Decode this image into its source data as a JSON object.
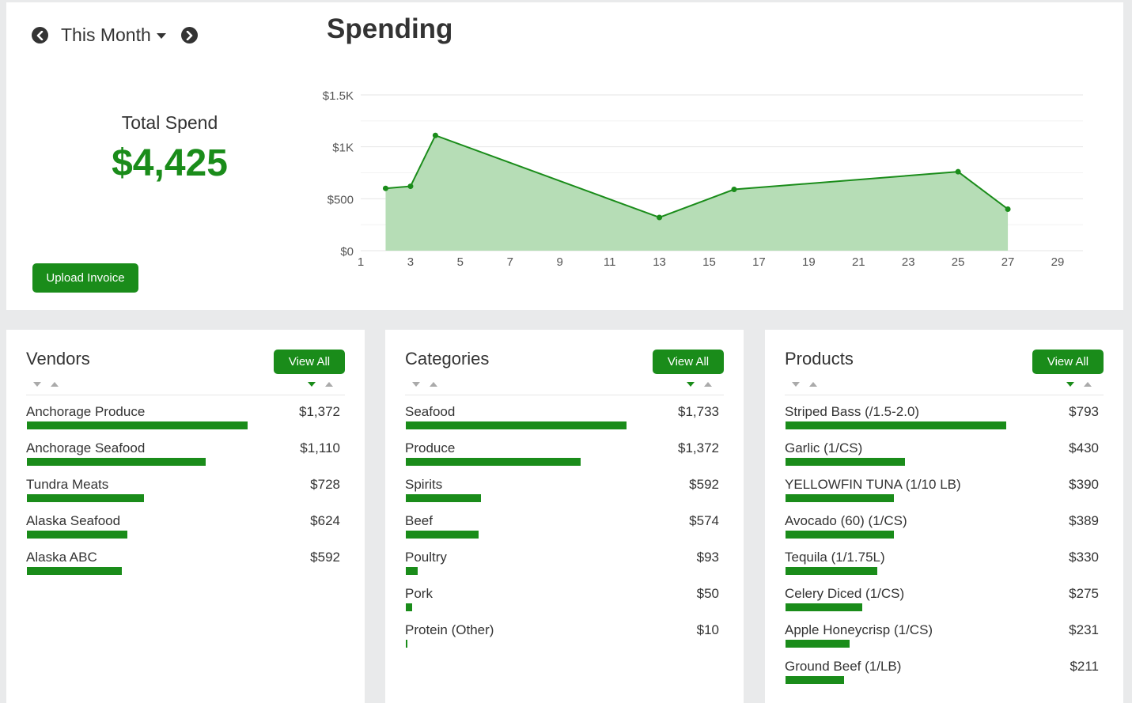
{
  "period": {
    "label": "This Month",
    "prev_icon": "chevron-left-circle-icon",
    "next_icon": "chevron-right-circle-icon"
  },
  "total": {
    "label": "Total Spend",
    "value": "$4,425"
  },
  "upload_label": "Upload Invoice",
  "colors": {
    "accent": "#1a8c1a",
    "area_fill": "#b6ddb6",
    "line": "#1a8c1a"
  },
  "chart_data": {
    "type": "area",
    "title": "Spending",
    "x_ticks": [
      "1",
      "3",
      "5",
      "7",
      "9",
      "11",
      "13",
      "15",
      "17",
      "19",
      "21",
      "23",
      "25",
      "27",
      "29"
    ],
    "y_ticks": [
      "$0",
      "$500",
      "$1K",
      "$1.5K"
    ],
    "xlim": [
      1,
      30
    ],
    "ylim": [
      0,
      1500
    ],
    "series": [
      {
        "x": [
          2,
          3,
          4,
          13,
          16,
          25,
          27
        ],
        "y": [
          600,
          620,
          1110,
          320,
          590,
          760,
          400
        ]
      }
    ],
    "grid": true
  },
  "vendors": {
    "title": "Vendors",
    "view_all": "View All",
    "items": [
      {
        "name": "Anchorage Produce",
        "value": "$1,372",
        "amount": 1372
      },
      {
        "name": "Anchorage Seafood",
        "value": "$1,110",
        "amount": 1110
      },
      {
        "name": "Tundra Meats",
        "value": "$728",
        "amount": 728
      },
      {
        "name": "Alaska Seafood",
        "value": "$624",
        "amount": 624
      },
      {
        "name": "Alaska ABC",
        "value": "$592",
        "amount": 592
      }
    ]
  },
  "categories": {
    "title": "Categories",
    "view_all": "View All",
    "items": [
      {
        "name": "Seafood",
        "value": "$1,733",
        "amount": 1733
      },
      {
        "name": "Produce",
        "value": "$1,372",
        "amount": 1372
      },
      {
        "name": "Spirits",
        "value": "$592",
        "amount": 592
      },
      {
        "name": "Beef",
        "value": "$574",
        "amount": 574
      },
      {
        "name": "Poultry",
        "value": "$93",
        "amount": 93
      },
      {
        "name": "Pork",
        "value": "$50",
        "amount": 50
      },
      {
        "name": "Protein (Other)",
        "value": "$10",
        "amount": 10
      }
    ]
  },
  "products": {
    "title": "Products",
    "view_all": "View All",
    "items": [
      {
        "name": "Striped Bass (/1.5-2.0)",
        "value": "$793",
        "amount": 793
      },
      {
        "name": "Garlic (1/CS)",
        "value": "$430",
        "amount": 430
      },
      {
        "name": "YELLOWFIN TUNA (1/10 LB)",
        "value": "$390",
        "amount": 390
      },
      {
        "name": "Avocado (60) (1/CS)",
        "value": "$389",
        "amount": 389
      },
      {
        "name": "Tequila (1/1.75L)",
        "value": "$330",
        "amount": 330
      },
      {
        "name": "Celery Diced (1/CS)",
        "value": "$275",
        "amount": 275
      },
      {
        "name": "Apple Honeycrisp (1/CS)",
        "value": "$231",
        "amount": 231
      },
      {
        "name": "Ground Beef (1/LB)",
        "value": "$211",
        "amount": 211
      }
    ]
  }
}
